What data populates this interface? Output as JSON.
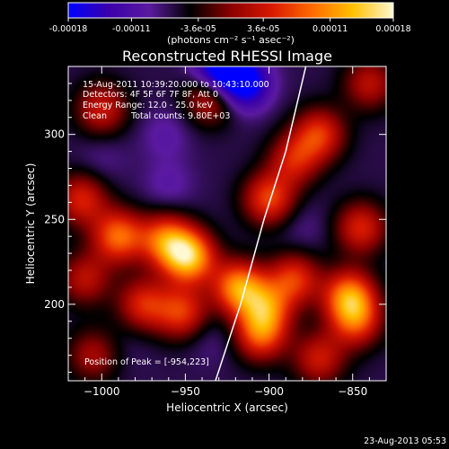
{
  "chart_data": {
    "type": "heatmap",
    "title": "Reconstructed RHESSI Image",
    "xlabel": "Heliocentric X (arcsec)",
    "ylabel": "Heliocentric Y (arcsec)",
    "xlim": [
      -1020,
      -830
    ],
    "ylim": [
      155,
      340
    ],
    "xticks": [
      -1000,
      -950,
      -900,
      -850
    ],
    "yticks": [
      200,
      250,
      300
    ],
    "colorbar": {
      "range": [
        -0.00018,
        0.00018
      ],
      "ticks": [
        "-0.00018",
        "-0.00011",
        "-3.6e-05",
        "3.6e-05",
        "0.00011",
        "0.00018"
      ],
      "unit_label": "(photons cm⁻² s⁻¹ asec⁻²)",
      "colors": [
        "#0000ff",
        "#3a00aa",
        "#5b1aa0",
        "#000000",
        "#8a0000",
        "#d81800",
        "#ff6a00",
        "#ffc000",
        "#fff8d0"
      ]
    },
    "annotations": [
      "15-Aug-2011 10:39:20.000 to 10:43:10.000",
      "Detectors: 4F 5F 6F 7F 8F, Att 0",
      "Energy Range: 12.0 - 25.0 keV",
      "Clean",
      "Total counts: 9.80E+03"
    ],
    "peak_text": "Position of Peak = [-954,223]",
    "limb": [
      [
        -932,
        155
      ],
      [
        -917,
        200
      ],
      [
        -903,
        250
      ],
      [
        -890,
        290
      ],
      [
        -878,
        340
      ]
    ],
    "sources": [
      {
        "x": -948,
        "y": 228,
        "v": 0.00018
      },
      {
        "x": -962,
        "y": 238,
        "v": 0.00012
      },
      {
        "x": -990,
        "y": 240,
        "v": 0.00013
      },
      {
        "x": -1012,
        "y": 262,
        "v": 9e-05
      },
      {
        "x": -918,
        "y": 210,
        "v": 0.00015
      },
      {
        "x": -902,
        "y": 198,
        "v": 0.00011
      },
      {
        "x": -905,
        "y": 182,
        "v": 0.00011
      },
      {
        "x": -885,
        "y": 215,
        "v": 0.0001
      },
      {
        "x": -852,
        "y": 205,
        "v": 0.00014
      },
      {
        "x": -848,
        "y": 190,
        "v": 0.0001
      },
      {
        "x": -845,
        "y": 245,
        "v": 9e-05
      },
      {
        "x": -900,
        "y": 262,
        "v": 0.00011
      },
      {
        "x": -885,
        "y": 285,
        "v": 8e-05
      },
      {
        "x": -975,
        "y": 200,
        "v": 9e-05
      },
      {
        "x": -952,
        "y": 195,
        "v": 0.0001
      },
      {
        "x": -1010,
        "y": 215,
        "v": 7e-05
      },
      {
        "x": -1000,
        "y": 315,
        "v": 8e-05
      },
      {
        "x": -935,
        "y": 322,
        "v": 9e-05
      },
      {
        "x": -870,
        "y": 300,
        "v": 0.0001
      },
      {
        "x": -840,
        "y": 330,
        "v": 7e-05
      },
      {
        "x": -1005,
        "y": 170,
        "v": 6e-05
      },
      {
        "x": -870,
        "y": 168,
        "v": 8e-05
      },
      {
        "x": -930,
        "y": 338,
        "v": -0.00016
      },
      {
        "x": -915,
        "y": 330,
        "v": -0.00015
      },
      {
        "x": -962,
        "y": 300,
        "v": -5e-05
      },
      {
        "x": -960,
        "y": 270,
        "v": -5e-05
      },
      {
        "x": -1000,
        "y": 285,
        "v": -4e-05
      },
      {
        "x": -935,
        "y": 180,
        "v": -4e-05
      },
      {
        "x": -880,
        "y": 245,
        "v": -4e-05
      },
      {
        "x": -985,
        "y": 175,
        "v": -3e-05
      }
    ]
  },
  "footer": {
    "timestamp": "23-Aug-2013 05:53"
  }
}
